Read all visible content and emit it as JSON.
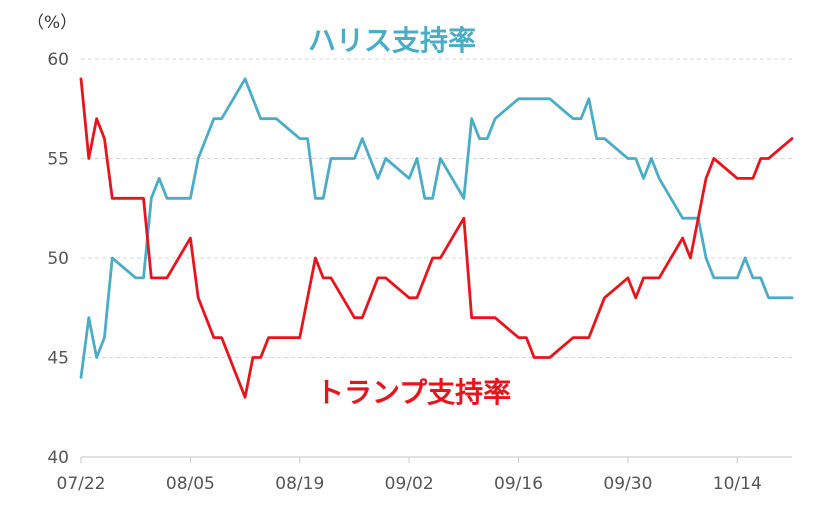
{
  "chart_data": {
    "type": "line",
    "unit_label": "（%）",
    "ylim": [
      40,
      60
    ],
    "y_ticks": [
      40,
      45,
      50,
      55,
      60
    ],
    "x_tick_labels": [
      "07/22",
      "08/05",
      "08/19",
      "09/02",
      "09/16",
      "09/30",
      "10/14"
    ],
    "x_tick_days": [
      0,
      14,
      28,
      42,
      56,
      70,
      84
    ],
    "x_range_days": [
      0,
      91
    ],
    "x_start_date": "07/22",
    "grid": true,
    "series": [
      {
        "name": "ハリス支持率",
        "color": "#4bacc6",
        "points": [
          [
            0,
            44
          ],
          [
            1,
            47
          ],
          [
            2,
            45
          ],
          [
            3,
            46
          ],
          [
            4,
            50
          ],
          [
            7,
            49
          ],
          [
            8,
            49
          ],
          [
            9,
            53
          ],
          [
            10,
            54
          ],
          [
            11,
            53
          ],
          [
            14,
            53
          ],
          [
            15,
            55
          ],
          [
            17,
            57
          ],
          [
            18,
            57
          ],
          [
            21,
            59
          ],
          [
            22,
            58
          ],
          [
            23,
            57
          ],
          [
            25,
            57
          ],
          [
            28,
            56
          ],
          [
            29,
            56
          ],
          [
            30,
            53
          ],
          [
            31,
            53
          ],
          [
            32,
            55
          ],
          [
            35,
            55
          ],
          [
            36,
            56
          ],
          [
            38,
            54
          ],
          [
            39,
            55
          ],
          [
            42,
            54
          ],
          [
            43,
            55
          ],
          [
            44,
            53
          ],
          [
            45,
            53
          ],
          [
            46,
            55
          ],
          [
            49,
            53
          ],
          [
            50,
            57
          ],
          [
            51,
            56
          ],
          [
            52,
            56
          ],
          [
            53,
            57
          ],
          [
            56,
            58
          ],
          [
            60,
            58
          ],
          [
            63,
            57
          ],
          [
            64,
            57
          ],
          [
            65,
            58
          ],
          [
            66,
            56
          ],
          [
            67,
            56
          ],
          [
            70,
            55
          ],
          [
            71,
            55
          ],
          [
            72,
            54
          ],
          [
            73,
            55
          ],
          [
            74,
            54
          ],
          [
            77,
            52
          ],
          [
            79,
            52
          ],
          [
            80,
            50
          ],
          [
            81,
            49
          ],
          [
            84,
            49
          ],
          [
            85,
            50
          ],
          [
            86,
            49
          ],
          [
            87,
            49
          ],
          [
            88,
            48
          ],
          [
            91,
            48
          ]
        ]
      },
      {
        "name": "トランプ支持率",
        "color": "#e8141b",
        "points": [
          [
            0,
            59
          ],
          [
            1,
            55
          ],
          [
            2,
            57
          ],
          [
            3,
            56
          ],
          [
            4,
            53
          ],
          [
            8,
            53
          ],
          [
            9,
            49
          ],
          [
            11,
            49
          ],
          [
            14,
            51
          ],
          [
            15,
            48
          ],
          [
            17,
            46
          ],
          [
            18,
            46
          ],
          [
            21,
            43
          ],
          [
            22,
            45
          ],
          [
            23,
            45
          ],
          [
            24,
            46
          ],
          [
            28,
            46
          ],
          [
            30,
            50
          ],
          [
            31,
            49
          ],
          [
            32,
            49
          ],
          [
            35,
            47
          ],
          [
            36,
            47
          ],
          [
            38,
            49
          ],
          [
            39,
            49
          ],
          [
            42,
            48
          ],
          [
            43,
            48
          ],
          [
            45,
            50
          ],
          [
            46,
            50
          ],
          [
            49,
            52
          ],
          [
            50,
            47
          ],
          [
            53,
            47
          ],
          [
            56,
            46
          ],
          [
            57,
            46
          ],
          [
            58,
            45
          ],
          [
            60,
            45
          ],
          [
            63,
            46
          ],
          [
            65,
            46
          ],
          [
            67,
            48
          ],
          [
            70,
            49
          ],
          [
            71,
            48
          ],
          [
            72,
            49
          ],
          [
            74,
            49
          ],
          [
            77,
            51
          ],
          [
            78,
            50
          ],
          [
            80,
            54
          ],
          [
            81,
            55
          ],
          [
            84,
            54
          ],
          [
            86,
            54
          ],
          [
            87,
            55
          ],
          [
            88,
            55
          ],
          [
            91,
            56
          ]
        ]
      }
    ]
  }
}
